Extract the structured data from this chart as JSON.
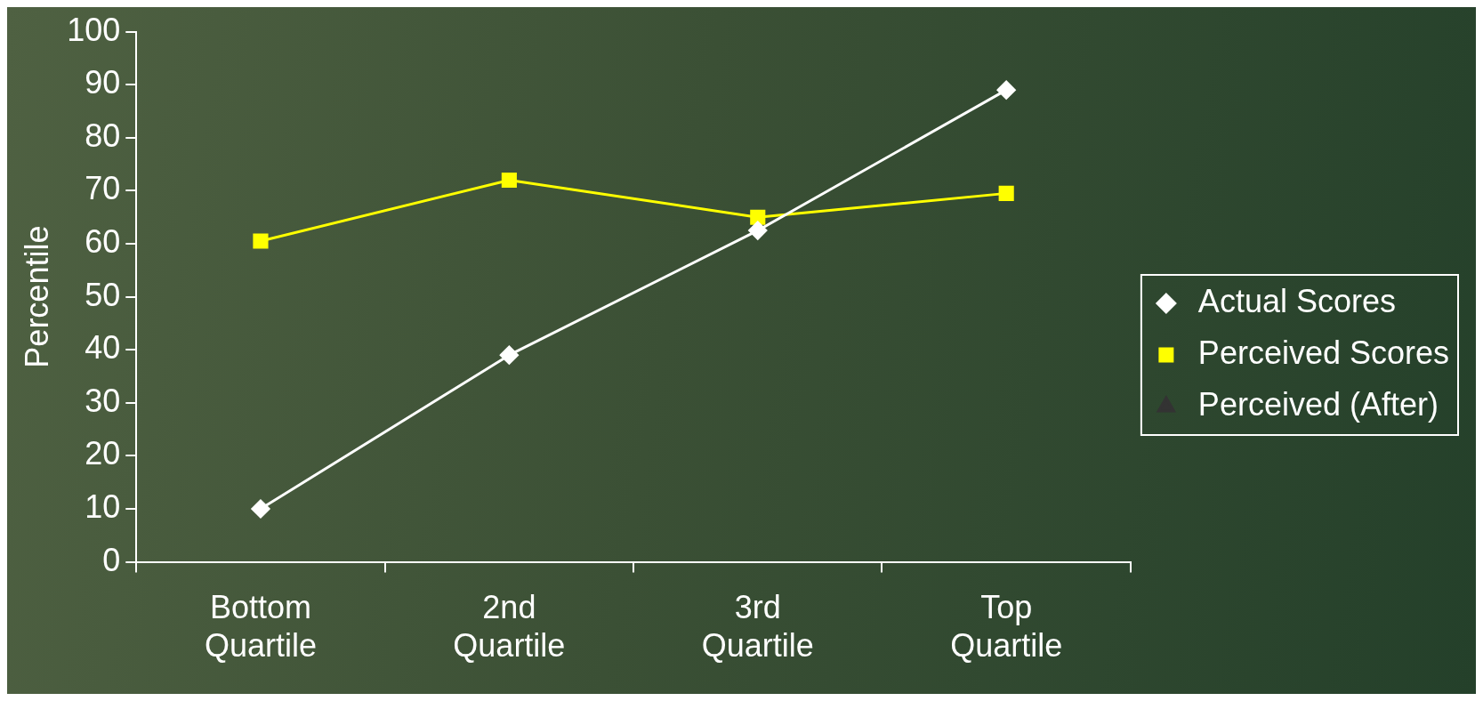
{
  "chart_data": {
    "type": "line",
    "ylabel": "Percentile",
    "categories": [
      "Bottom Quartile",
      "2nd Quartile",
      "3rd Quartile",
      "Top Quartile"
    ],
    "series": [
      {
        "name": "Actual Scores",
        "color": "#ffffff",
        "marker": "diamond",
        "values": [
          10,
          39,
          62.5,
          89
        ]
      },
      {
        "name": "Perceived Scores",
        "color": "#ffff00",
        "marker": "square",
        "values": [
          60.5,
          72,
          65,
          69.5
        ]
      },
      {
        "name": "Perceived (After)",
        "color": "#333333",
        "marker": "triangle",
        "values": [
          null,
          null,
          null,
          null
        ]
      }
    ],
    "ylim": [
      0,
      100
    ],
    "yticks": [
      0,
      10,
      20,
      30,
      40,
      50,
      60,
      70,
      80,
      90,
      100
    ],
    "grid": false,
    "legend": "right",
    "line_style": "solid"
  }
}
